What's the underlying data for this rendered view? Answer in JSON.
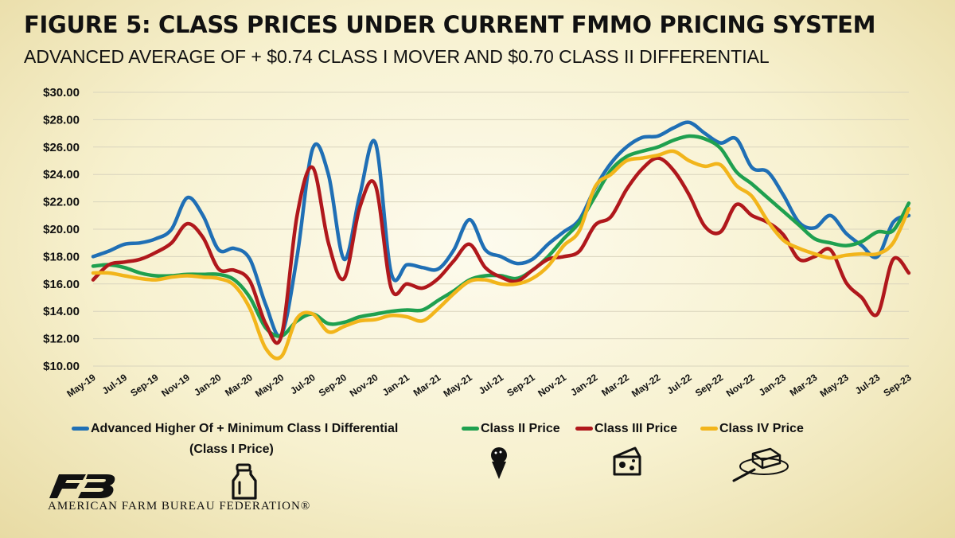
{
  "title": "FIGURE 5: CLASS PRICES UNDER CURRENT FMMO PRICING SYSTEM",
  "subtitle": "ADVANCED AVERAGE OF + $0.74 CLASS I MOVER AND $0.70 CLASS II DIFFERENTIAL",
  "legend": {
    "class1": "Advanced Higher Of + Minimum Class I Differential",
    "class1_sub": "(Class I Price)",
    "class2": "Class II Price",
    "class3": "Class III Price",
    "class4": "Class IV Price"
  },
  "logo_text": "AMERICAN FARM BUREAU FEDERATION®",
  "icons": [
    "milk-bottle-icon",
    "ice-cream-icon",
    "cheese-icon",
    "butter-icon"
  ],
  "chart_data": {
    "type": "line",
    "x": [
      "May-19",
      "Jun-19",
      "Jul-19",
      "Aug-19",
      "Sep-19",
      "Oct-19",
      "Nov-19",
      "Dec-19",
      "Jan-20",
      "Feb-20",
      "Mar-20",
      "Apr-20",
      "May-20",
      "Jun-20",
      "Jul-20",
      "Aug-20",
      "Sep-20",
      "Oct-20",
      "Nov-20",
      "Dec-20",
      "Jan-21",
      "Feb-21",
      "Mar-21",
      "Apr-21",
      "May-21",
      "Jun-21",
      "Jul-21",
      "Aug-21",
      "Sep-21",
      "Oct-21",
      "Nov-21",
      "Dec-21",
      "Jan-22",
      "Feb-22",
      "Mar-22",
      "Apr-22",
      "May-22",
      "Jun-22",
      "Jul-22",
      "Aug-22",
      "Sep-22",
      "Oct-22",
      "Nov-22",
      "Dec-22",
      "Jan-23",
      "Feb-23",
      "Mar-23",
      "Apr-23",
      "May-23",
      "Jun-23",
      "Jul-23",
      "Aug-23",
      "Sep-23"
    ],
    "tick_labels": [
      "May-19",
      "Jul-19",
      "Sep-19",
      "Nov-19",
      "Jan-20",
      "Mar-20",
      "May-20",
      "Jul-20",
      "Sep-20",
      "Nov-20",
      "Jan-21",
      "Mar-21",
      "May-21",
      "Jul-21",
      "Sep-21",
      "Nov-21",
      "Jan-22",
      "Mar-22",
      "May-22",
      "Jul-22",
      "Sep-22",
      "Nov-22",
      "Jan-23",
      "Mar-23",
      "May-23",
      "Jul-23",
      "Sep-23"
    ],
    "ylim": [
      10,
      30
    ],
    "yticks": [
      10,
      12,
      14,
      16,
      18,
      20,
      22,
      24,
      26,
      28,
      30
    ],
    "ytick_labels": [
      "$10.00",
      "$12.00",
      "$14.00",
      "$16.00",
      "$18.00",
      "$20.00",
      "$22.00",
      "$24.00",
      "$26.00",
      "$28.00",
      "$30.00"
    ],
    "grid": true,
    "series": [
      {
        "name": "Advanced Higher Of + Minimum Class I Differential",
        "color": "#1f6fb5",
        "values": [
          18.0,
          18.4,
          18.9,
          19.0,
          19.3,
          20.0,
          22.3,
          21.0,
          18.5,
          18.6,
          17.8,
          14.5,
          12.3,
          18.0,
          25.9,
          24.0,
          17.8,
          22.5,
          26.3,
          16.8,
          17.4,
          17.2,
          17.1,
          18.5,
          20.7,
          18.5,
          18.0,
          17.5,
          17.8,
          18.9,
          19.8,
          20.7,
          23.0,
          24.8,
          26.0,
          26.7,
          26.8,
          27.4,
          27.8,
          27.0,
          26.3,
          26.6,
          24.5,
          24.2,
          22.5,
          20.5,
          20.1,
          21.0,
          19.7,
          18.8,
          18.0,
          20.5,
          21.0
        ]
      },
      {
        "name": "Class II Price",
        "color": "#1fa04f",
        "values": [
          17.3,
          17.4,
          17.2,
          16.8,
          16.6,
          16.6,
          16.7,
          16.7,
          16.7,
          16.3,
          15.0,
          12.8,
          12.2,
          13.3,
          13.8,
          13.1,
          13.2,
          13.6,
          13.8,
          14.0,
          14.1,
          14.1,
          14.8,
          15.5,
          16.3,
          16.6,
          16.6,
          16.4,
          17.0,
          18.0,
          19.3,
          20.5,
          22.4,
          24.3,
          25.3,
          25.7,
          26.0,
          26.5,
          26.8,
          26.6,
          25.9,
          24.2,
          23.3,
          22.3,
          21.3,
          20.3,
          19.3,
          19.0,
          18.8,
          19.1,
          19.8,
          19.9,
          21.9
        ]
      },
      {
        "name": "Class III Price",
        "color": "#b0181c",
        "values": [
          16.3,
          17.4,
          17.6,
          17.8,
          18.3,
          19.0,
          20.4,
          19.4,
          17.1,
          17.0,
          16.2,
          13.1,
          12.2,
          21.0,
          24.5,
          19.0,
          16.4,
          21.6,
          23.2,
          15.7,
          16.0,
          15.7,
          16.4,
          17.7,
          18.9,
          17.2,
          16.5,
          16.2,
          17.0,
          17.8,
          18.0,
          18.4,
          20.3,
          20.9,
          22.9,
          24.4,
          25.2,
          24.3,
          22.5,
          20.2,
          19.8,
          21.8,
          21.0,
          20.5,
          19.6,
          17.8,
          18.0,
          18.5,
          16.1,
          15.0,
          13.8,
          17.8,
          16.8
        ]
      },
      {
        "name": "Class IV Price",
        "color": "#f2b51b",
        "values": [
          16.8,
          16.8,
          16.6,
          16.4,
          16.3,
          16.5,
          16.6,
          16.5,
          16.4,
          15.9,
          14.2,
          11.3,
          10.7,
          13.5,
          13.8,
          12.5,
          12.9,
          13.3,
          13.4,
          13.7,
          13.6,
          13.3,
          14.2,
          15.3,
          16.2,
          16.3,
          16.0,
          16.0,
          16.4,
          17.3,
          18.8,
          19.9,
          23.1,
          24.0,
          25.0,
          25.2,
          25.4,
          25.7,
          25.0,
          24.6,
          24.7,
          23.2,
          22.4,
          20.6,
          19.2,
          18.6,
          18.2,
          17.9,
          18.1,
          18.2,
          18.2,
          19.0,
          21.5
        ]
      }
    ]
  }
}
